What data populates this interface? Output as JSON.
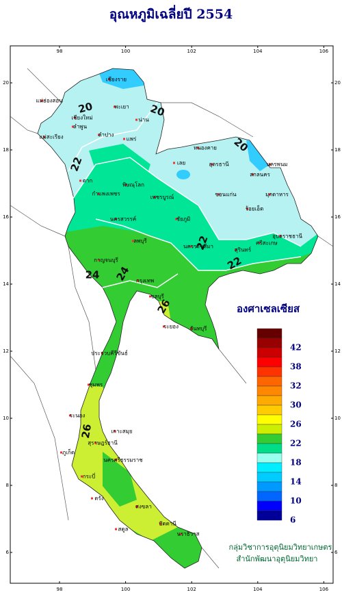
{
  "title": "อุณหภูมิเฉลี่ยปี 2554",
  "map": {
    "lon_ticks": [
      98,
      100,
      102,
      104,
      106
    ],
    "lat_ticks": [
      6,
      8,
      10,
      12,
      14,
      16,
      18,
      20
    ],
    "contour_labels": [
      "20",
      "20",
      "20",
      "22",
      "22",
      "22",
      "24",
      "24",
      "26",
      "26"
    ],
    "places": [
      "เชียงราย",
      "แม่ฮ่องสอน",
      "พะเยา",
      "น่าน",
      "เชียงใหม่",
      "ลำพูน",
      "ลำปาง",
      "แพร่",
      "แม่สะเรียง",
      "หนองคาย",
      "อุดรธานี",
      "นครพนม",
      "สกลนคร",
      "เลย",
      "ตาก",
      "พิษณุโลก",
      "ขอนแก่น",
      "มุกดาหาร",
      "กำแพงเพชร",
      "เพชรบูรณ์",
      "ชัยภูมิ",
      "นครสวรรค์",
      "ร้อยเอ็ด",
      "นครราชสีมา",
      "อุบลราชธานี",
      "ศรีสะเกษ",
      "สุรินทร์",
      "ลพบุรี",
      "กาญจนบุรี",
      "กรุงเทพ",
      "ชลบุรี",
      "ระยอง",
      "จันทบุรี",
      "ประจวบคีรีขันธ์",
      "ชุมพร",
      "ระนอง",
      "สุราษฎร์ธานี",
      "ภูเก็ต",
      "นครศรีธรรมราช",
      "กระบี่",
      "ตรัง",
      "สงขลา",
      "สตูล",
      "ปัตตานี",
      "นราธิวาส",
      "เกาะสมุย"
    ]
  },
  "legend": {
    "title": "องศาเซลเซียส",
    "colors": [
      "#660000",
      "#990000",
      "#cc0000",
      "#ff0000",
      "#ff3300",
      "#ff6600",
      "#ff8800",
      "#ffaa00",
      "#ffcc00",
      "#ffff00",
      "#ccee00",
      "#33cc33",
      "#00dd88",
      "#99ffee",
      "#00eeff",
      "#00ccff",
      "#0099ff",
      "#0066ff",
      "#0000ff",
      "#000099"
    ],
    "labels": [
      42,
      38,
      32,
      30,
      26,
      22,
      18,
      14,
      10,
      6
    ]
  },
  "credit": [
    "กลุ่มวิชาการอุตุนิยมวิทยาเกษตร",
    "สำนักพัฒนาอุตุนิยมวิทยา"
  ]
}
